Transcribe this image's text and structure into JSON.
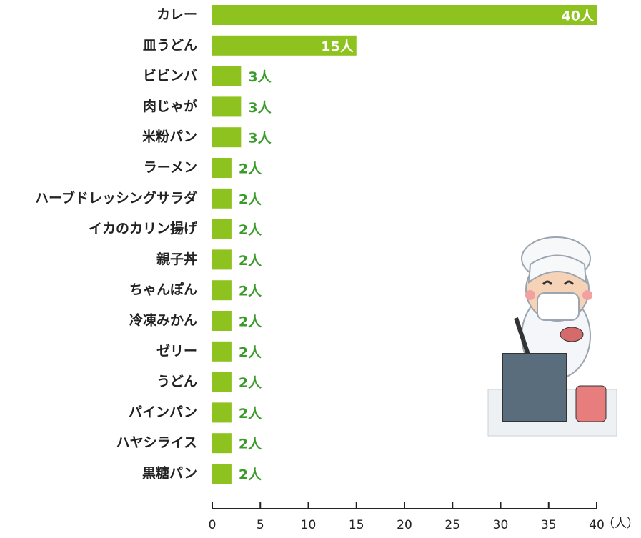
{
  "chart_data": {
    "type": "bar",
    "orientation": "horizontal",
    "categories": [
      "カレー",
      "皿うどん",
      "ビビンバ",
      "肉じゃが",
      "米粉パン",
      "ラーメン",
      "ハーブドレッシングサラダ",
      "イカのカリン揚げ",
      "親子丼",
      "ちゃんぽん",
      "冷凍みかん",
      "ゼリー",
      "うどん",
      "パインパン",
      "ハヤシライス",
      "黒糖パン"
    ],
    "values": [
      40,
      15,
      3,
      3,
      3,
      2,
      2,
      2,
      2,
      2,
      2,
      2,
      2,
      2,
      2,
      2
    ],
    "value_labels": [
      "40人",
      "15人",
      "3人",
      "3人",
      "3人",
      "2人",
      "2人",
      "2人",
      "2人",
      "2人",
      "2人",
      "2人",
      "2人",
      "2人",
      "2人",
      "2人"
    ],
    "color": "#8dc21f",
    "label_color": "#3a9b2b",
    "x_label": "（人）",
    "xlim": [
      0,
      40
    ],
    "xticks": [
      0,
      5,
      10,
      15,
      20,
      25,
      30,
      35,
      40
    ]
  }
}
